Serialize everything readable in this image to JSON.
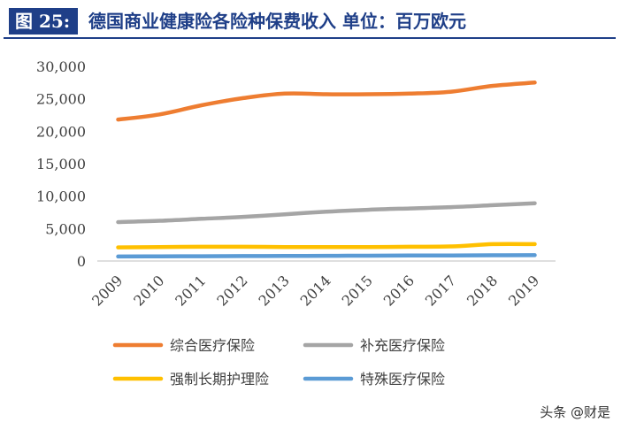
{
  "header": {
    "figure_label": "图 25:",
    "title": "德国商业健康险各险种保费收入  单位：百万欧元"
  },
  "watermark": "头条 @财是",
  "colors": {
    "header_blue": "#1f3f88",
    "series": [
      "#ee7d31",
      "#a5a5a5",
      "#ffc000",
      "#5b9bd5"
    ]
  },
  "chart_data": {
    "type": "line",
    "title": "德国商业健康险各险种保费收入  单位：百万欧元",
    "xlabel": "",
    "ylabel": "",
    "ylim": [
      0,
      30000
    ],
    "yticks": [
      "0",
      "5,000",
      "10,000",
      "15,000",
      "20,000",
      "25,000",
      "30,000"
    ],
    "x": [
      "2009",
      "2010",
      "2011",
      "2012",
      "2013",
      "2014",
      "2015",
      "2016",
      "2017",
      "2018",
      "2019"
    ],
    "grid": false,
    "legend_position": "bottom",
    "series": [
      {
        "name": "综合医疗保险",
        "color": "#ee7d31",
        "values": [
          21800,
          22600,
          24000,
          25100,
          25800,
          25700,
          25700,
          25800,
          26100,
          27000,
          27500
        ]
      },
      {
        "name": "补充医疗保险",
        "color": "#a5a5a5",
        "values": [
          6000,
          6200,
          6500,
          6800,
          7200,
          7600,
          7900,
          8100,
          8300,
          8600,
          8900
        ]
      },
      {
        "name": "强制长期护理险",
        "color": "#ffc000",
        "values": [
          2100,
          2150,
          2200,
          2200,
          2150,
          2150,
          2150,
          2200,
          2250,
          2600,
          2600
        ]
      },
      {
        "name": "特殊医疗保险",
        "color": "#5b9bd5",
        "values": [
          700,
          720,
          740,
          760,
          780,
          800,
          820,
          840,
          860,
          880,
          900
        ]
      }
    ]
  }
}
